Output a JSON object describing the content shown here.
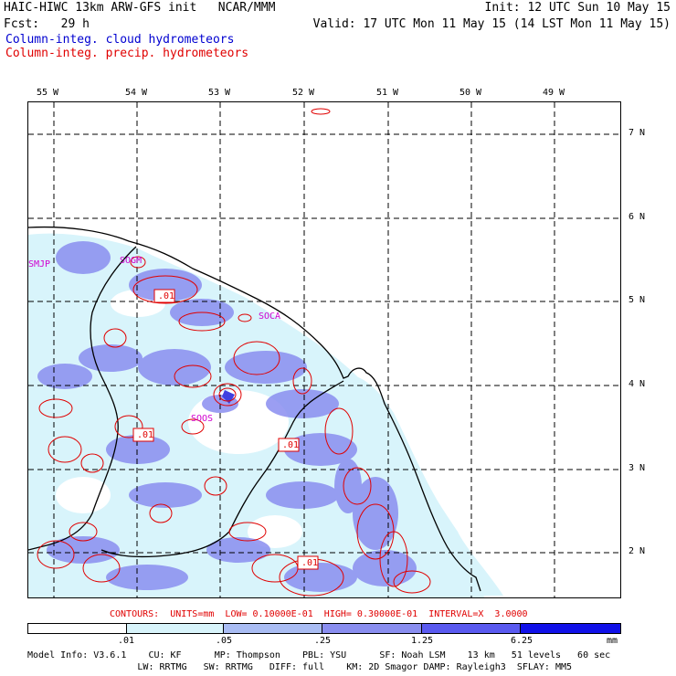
{
  "header": {
    "line1_left": "HAIC-HIWC 13km ARW-GFS init   NCAR/MMM",
    "line1_right": "Init: 12 UTC Sun 10 May 15",
    "line2_left": "Fcst:   29 h",
    "line2_right": "Valid: 17 UTC Mon 11 May 15 (14 LST Mon 11 May 15)",
    "field1": "Column-integ. cloud hydrometeors",
    "field2": "Column-integ. precip. hydrometeors"
  },
  "colors": {
    "cloud_blue": "#0000d0",
    "precip_red": "#e00000",
    "station_magenta": "#d000d0",
    "shade1": "#d8f4fb",
    "shade2": "#a9bcf3",
    "shade3": "#8a8ef0",
    "shade4": "#5a5af0",
    "shade5": "#1010e8"
  },
  "map": {
    "lon_labels": [
      "55 W",
      "54 W",
      "53 W",
      "52 W",
      "51 W",
      "50 W",
      "49 W"
    ],
    "lat_labels": [
      "7 N",
      "6 N",
      "5 N",
      "4 N",
      "3 N",
      "2 N"
    ],
    "stations": [
      "SMJP",
      "SOGM",
      "SOCA",
      "SOOS"
    ],
    "contour_labels": [
      ".01",
      ".01",
      ".01",
      ".01"
    ]
  },
  "contours_note": "CONTOURS:  UNITS=mm  LOW= 0.10000E-01  HIGH= 0.30000E-01  INTERVAL=X  3.0000",
  "colorbar": {
    "labels": [
      ".01",
      ".05",
      ".25",
      "1.25",
      "6.25",
      "mm"
    ]
  },
  "footer": {
    "line1": "Model Info: V3.6.1    CU: KF      MP: Thompson    PBL: YSU      SF: Noah LSM    13 km   51 levels   60 sec",
    "line2": "                    LW: RRTMG   SW: RRTMG   DIFF: full    KM: 2D Smagor DAMP: Rayleigh3  SFLAY: MM5"
  }
}
